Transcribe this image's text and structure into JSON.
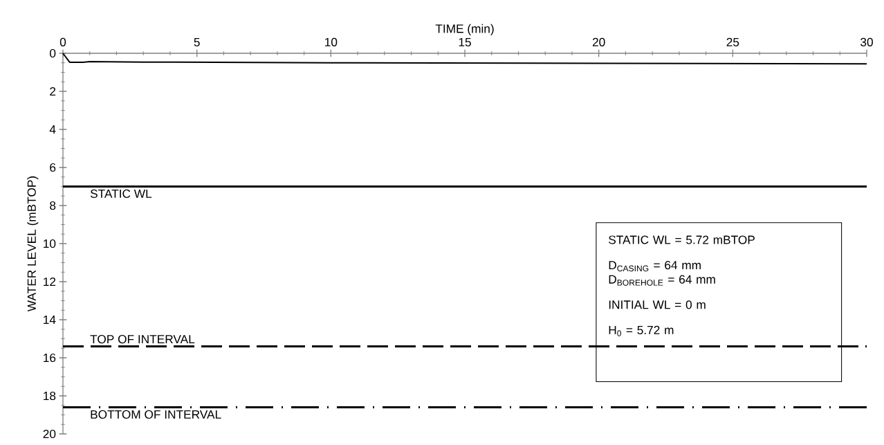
{
  "chart_data": {
    "type": "line",
    "xlabel": "TIME (min)",
    "ylabel": "WATER LEVEL (mBTOP)",
    "series": [
      {
        "color": "#000000",
        "x": [
          0,
          0.25,
          0.75,
          1,
          3,
          10,
          20,
          30
        ],
        "values": [
          0,
          0.47,
          0.47,
          0.44,
          0.46,
          0.5,
          0.53,
          0.55
        ]
      }
    ],
    "xlim": [
      0,
      30
    ],
    "xticks": [
      0,
      5,
      10,
      15,
      20,
      25,
      30
    ],
    "ylim": [
      20,
      0
    ],
    "yticks": [
      0,
      2,
      4,
      6,
      8,
      10,
      12,
      14,
      16,
      18,
      20
    ],
    "ref_lines": [
      {
        "axis": "y",
        "value": 7.0,
        "label": "STATIC WL",
        "color": "#000000",
        "line_style": "solid"
      },
      {
        "axis": "y",
        "value": 15.4,
        "label": "TOP OF INTERVAL",
        "color": "#000000",
        "line_style": "dashed"
      },
      {
        "axis": "y",
        "value": 18.6,
        "label": "BOTTOM OF INTERVAL",
        "color": "#000000",
        "line_style": "dashdot"
      }
    ],
    "annotations": [
      "STATIC WL = 5.72 mBTOP",
      "D$_{CASING}$ = 64 mm",
      "D$_{BOREHOLE}$ = 64 mm",
      "INITIAL WL = 0 m",
      "H$_{0}$ = 5.72 m"
    ],
    "grid": false,
    "marker": "none",
    "line_style": "solid"
  }
}
